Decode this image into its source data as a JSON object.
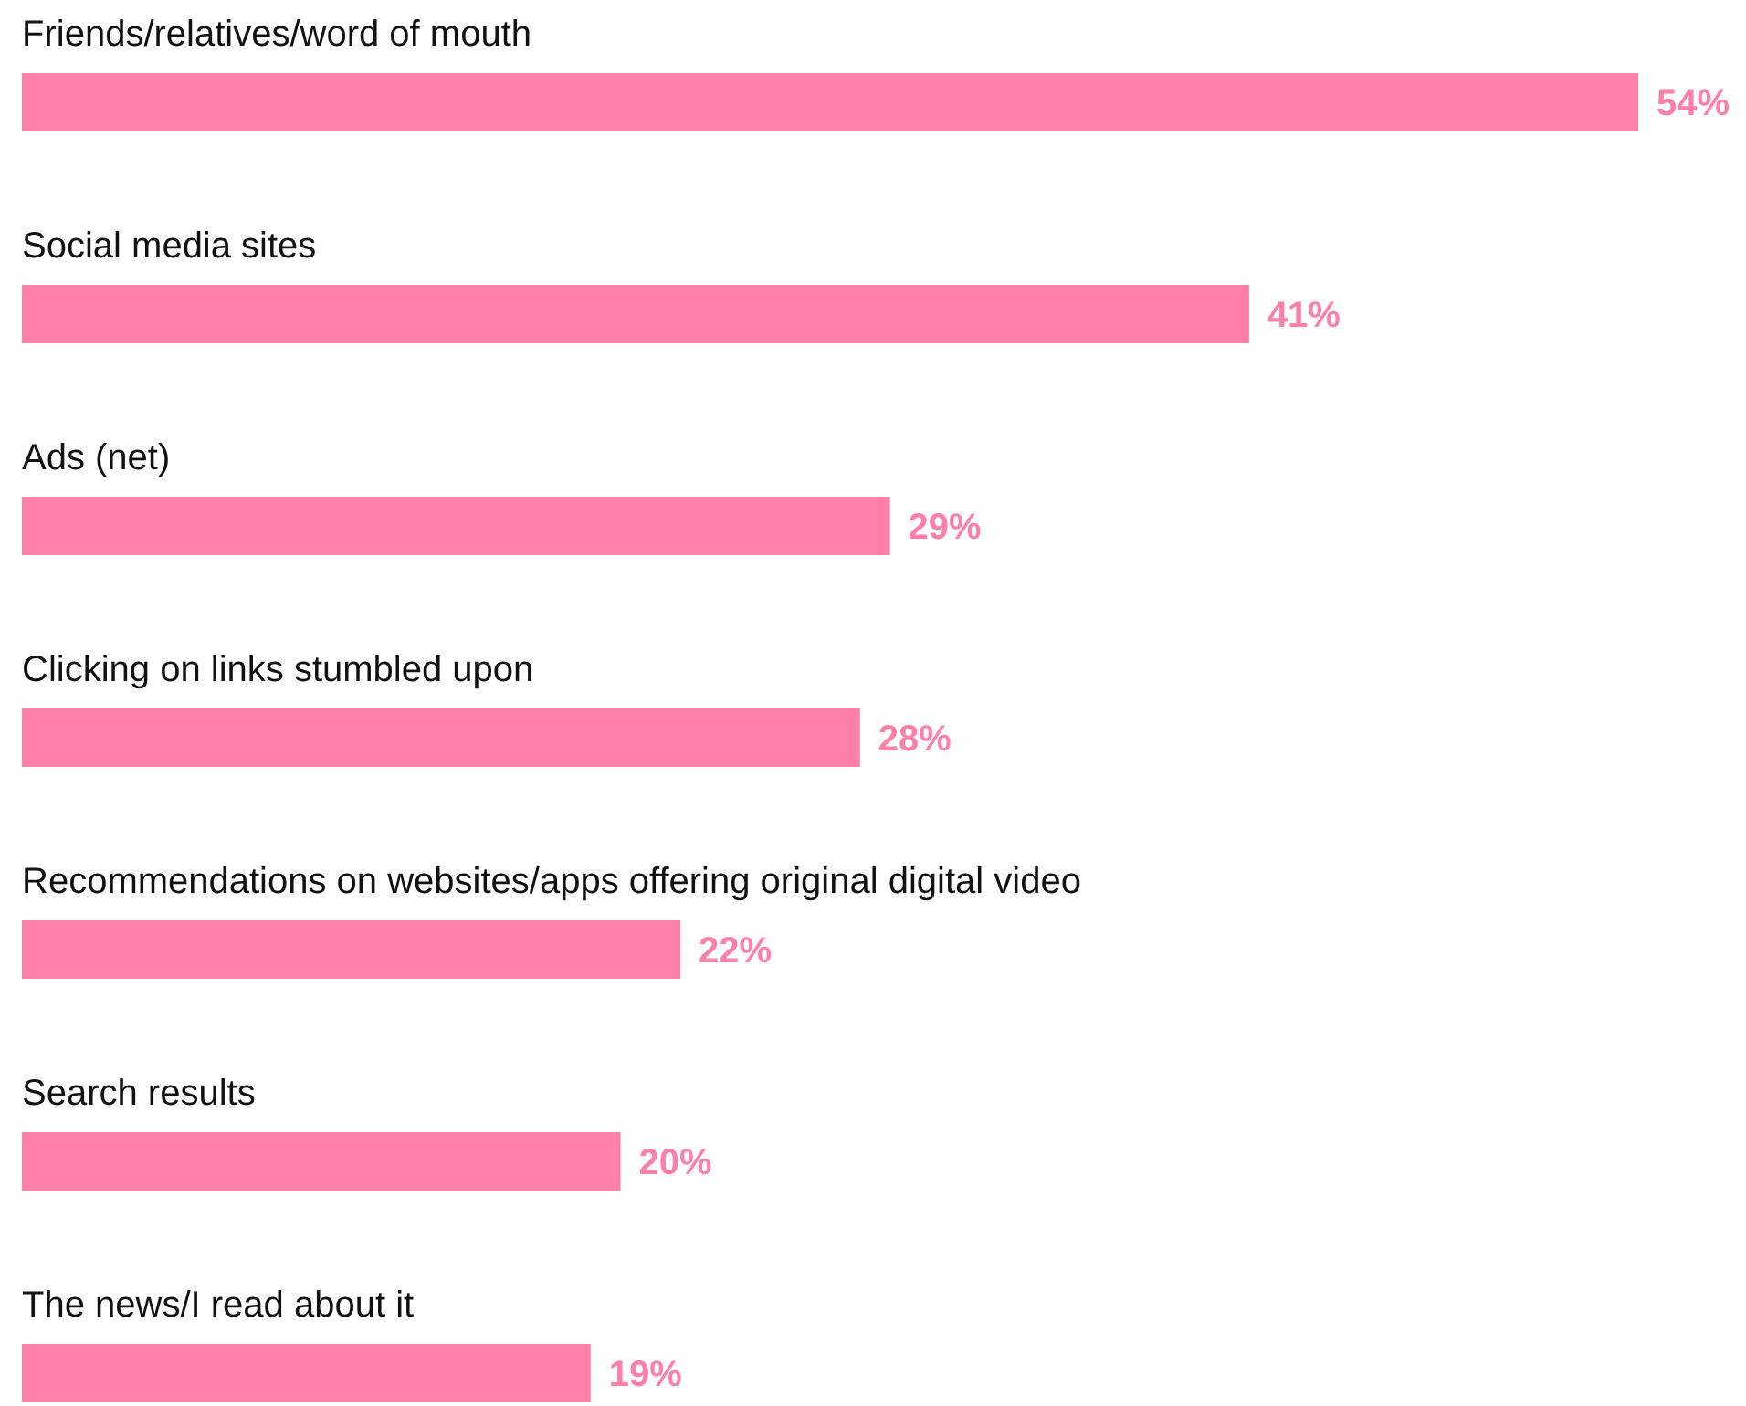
{
  "chart_data": {
    "type": "bar",
    "orientation": "horizontal",
    "categories": [
      "Friends/relatives/word of mouth",
      "Social media sites",
      "Ads (net)",
      "Clicking on links stumbled upon",
      "Recommendations on websites/apps offering original digital video",
      "Search results",
      "The news/I read about it"
    ],
    "values": [
      54,
      41,
      29,
      28,
      22,
      20,
      19
    ],
    "value_labels": [
      "54%",
      "41%",
      "29%",
      "28%",
      "22%",
      "20%",
      "19%"
    ],
    "color": "#ff7fab"
  }
}
